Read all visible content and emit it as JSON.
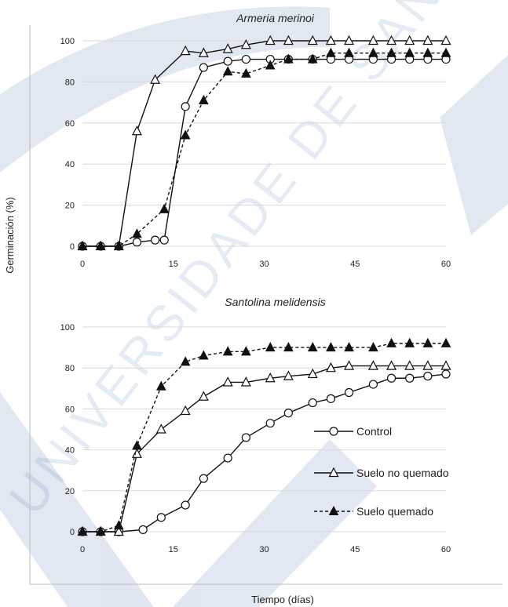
{
  "figure": {
    "ylabel": "Germinación (%)",
    "xlabel": "Tiempo  (días)",
    "watermark": "UNIVERSIDADE DE SANTIAGO DE COMPOSTELA"
  },
  "chart_data": [
    {
      "type": "line",
      "title": "Armeria merinoi",
      "xlim": [
        0,
        60
      ],
      "ylim": [
        0,
        100
      ],
      "xticks": [
        0,
        15,
        30,
        45,
        60
      ],
      "yticks": [
        0,
        20,
        40,
        60,
        80,
        100
      ],
      "grid": true,
      "series": [
        {
          "name": "Control",
          "style": "solid",
          "marker": "circle-open",
          "x": [
            0,
            3,
            6,
            9,
            12,
            13.5,
            17,
            20,
            24,
            27,
            31,
            34,
            38,
            41,
            44,
            48,
            51,
            54,
            57,
            60
          ],
          "y": [
            0,
            0,
            0,
            2,
            3,
            3,
            68,
            87,
            90,
            91,
            91,
            91,
            91,
            91,
            91,
            91,
            91,
            91,
            91,
            91
          ]
        },
        {
          "name": "Suelo no quemado",
          "style": "solid",
          "marker": "triangle-open",
          "x": [
            0,
            3,
            6,
            9,
            12,
            17,
            20,
            24,
            27,
            31,
            34,
            38,
            41,
            44,
            48,
            51,
            54,
            57,
            60
          ],
          "y": [
            0,
            0,
            0,
            56,
            81,
            95,
            94,
            96,
            98,
            100,
            100,
            100,
            100,
            100,
            100,
            100,
            100,
            100,
            100
          ]
        },
        {
          "name": "Suelo quemado",
          "style": "dashed",
          "marker": "triangle-filled",
          "x": [
            0,
            3,
            6,
            9,
            13.5,
            17,
            20,
            24,
            27,
            31,
            34,
            38,
            41,
            44,
            48,
            51,
            54,
            57,
            60
          ],
          "y": [
            0,
            0,
            0,
            6,
            18,
            54,
            71,
            85,
            84,
            88,
            91,
            91,
            94,
            94,
            94,
            94,
            94,
            94,
            94
          ]
        }
      ]
    },
    {
      "type": "line",
      "title": "Santolina melidensis",
      "xlim": [
        0,
        60
      ],
      "ylim": [
        0,
        100
      ],
      "xticks": [
        0,
        15,
        30,
        45,
        60
      ],
      "yticks": [
        0,
        20,
        40,
        60,
        80,
        100
      ],
      "grid": true,
      "legend": "right",
      "series": [
        {
          "name": "Control",
          "style": "solid",
          "marker": "circle-open",
          "x": [
            0,
            3,
            6,
            10,
            13,
            17,
            20,
            24,
            27,
            31,
            34,
            38,
            41,
            44,
            48,
            51,
            54,
            57,
            60
          ],
          "y": [
            0,
            0,
            0,
            1,
            7,
            13,
            26,
            36,
            46,
            53,
            58,
            63,
            65,
            68,
            72,
            75,
            75,
            76,
            77
          ]
        },
        {
          "name": "Suelo no quemado",
          "style": "solid",
          "marker": "triangle-open",
          "x": [
            0,
            3,
            6,
            9,
            13,
            17,
            20,
            24,
            27,
            31,
            34,
            38,
            41,
            44,
            48,
            51,
            54,
            57,
            60
          ],
          "y": [
            0,
            0,
            0,
            38,
            50,
            59,
            66,
            73,
            73,
            75,
            76,
            77,
            80,
            81,
            81,
            81,
            81,
            81,
            81
          ]
        },
        {
          "name": "Suelo quemado",
          "style": "dashed",
          "marker": "triangle-filled",
          "x": [
            0,
            3,
            6,
            9,
            13,
            17,
            20,
            24,
            27,
            31,
            34,
            38,
            41,
            44,
            48,
            51,
            54,
            57,
            60
          ],
          "y": [
            0,
            0,
            3,
            42,
            71,
            83,
            86,
            88,
            88,
            90,
            90,
            90,
            90,
            90,
            90,
            92,
            92,
            92,
            92
          ]
        }
      ]
    }
  ],
  "legend": {
    "items": [
      "Control",
      "Suelo no quemado",
      "Suelo quemado"
    ]
  }
}
